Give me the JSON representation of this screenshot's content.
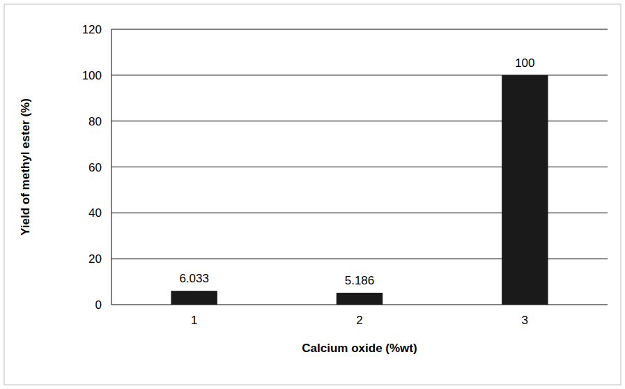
{
  "chart_data": {
    "type": "bar",
    "x_label": "Calcium oxide (%wt)",
    "y_label": "Yield of methyl ester (%)",
    "categories": [
      "1",
      "2",
      "3"
    ],
    "values": [
      6.033,
      5.186,
      100
    ],
    "color": "#1a1a1a",
    "ylim": [
      0,
      120
    ],
    "yticks": [
      0,
      20,
      40,
      60,
      80,
      100,
      120
    ],
    "grid": true,
    "data_labels": true
  }
}
